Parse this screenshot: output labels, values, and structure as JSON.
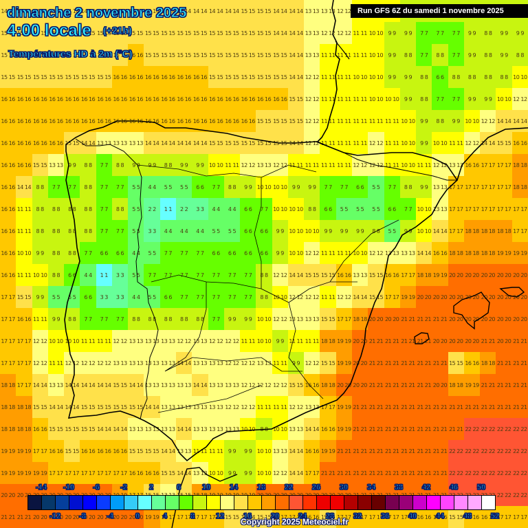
{
  "header": {
    "date": "dimanche 2 novembre 2025",
    "time": "4:00 locale",
    "offset": "(+21h)",
    "variable": "Températures HD à 2m (°C)",
    "run": "Run GFS 6Z du samedi 1 novembre 2025"
  },
  "copyright": "Copyright 2025 Meteociel.fr",
  "legend": {
    "unit": "°C",
    "boxes": [
      {
        "from": -16,
        "color": "#0a1440"
      },
      {
        "from": -14,
        "color": "#06386a"
      },
      {
        "from": -12,
        "color": "#053f9c"
      },
      {
        "from": -10,
        "color": "#0010d0"
      },
      {
        "from": -8,
        "color": "#0000ff"
      },
      {
        "from": -6,
        "color": "#0a3cff"
      },
      {
        "from": -4,
        "color": "#009cf8"
      },
      {
        "from": -2,
        "color": "#34ccf8"
      },
      {
        "from": 0,
        "color": "#66ffff"
      },
      {
        "from": 2,
        "color": "#66ff99"
      },
      {
        "from": 4,
        "color": "#66ff66"
      },
      {
        "from": 6,
        "color": "#66ff00"
      },
      {
        "from": 8,
        "color": "#c8f510"
      },
      {
        "from": 10,
        "color": "#ffff00"
      },
      {
        "from": 12,
        "color": "#ffff80"
      },
      {
        "from": 14,
        "color": "#ffe14a"
      },
      {
        "from": 16,
        "color": "#ffc800"
      },
      {
        "from": 18,
        "color": "#ff9d00"
      },
      {
        "from": 20,
        "color": "#ff6e00"
      },
      {
        "from": 22,
        "color": "#ff5533"
      },
      {
        "from": 24,
        "color": "#ff3300"
      },
      {
        "from": 26,
        "color": "#ee0000"
      },
      {
        "from": 28,
        "color": "#f00000"
      },
      {
        "from": 30,
        "color": "#b40000"
      },
      {
        "from": 32,
        "color": "#8a0000"
      },
      {
        "from": 34,
        "color": "#680000"
      },
      {
        "from": 36,
        "color": "#780050"
      },
      {
        "from": 38,
        "color": "#9a0078"
      },
      {
        "from": 40,
        "color": "#cc00cc"
      },
      {
        "from": 42,
        "color": "#ff00ff"
      },
      {
        "from": 44,
        "color": "#ff44ff"
      },
      {
        "from": 46,
        "color": "#ff88ff"
      },
      {
        "from": 48,
        "color": "#ffaaff"
      },
      {
        "from": 50,
        "color": "#ffffff"
      }
    ],
    "top_labels": [
      "-14",
      "-10",
      "-6",
      "-2",
      "2",
      "6",
      "10",
      "14",
      "18",
      "22",
      "26",
      "30",
      "34",
      "38",
      "42",
      "46",
      "50"
    ],
    "bottom_labels": [
      "-12",
      "-8",
      "-4",
      "0",
      "4",
      "8",
      "12",
      "16",
      "20",
      "24",
      "28",
      "32",
      "36",
      "40",
      "44",
      "48",
      "52"
    ]
  },
  "map": {
    "region": "Péninsule Ibérique",
    "cols": 33,
    "rows": 24,
    "temperatures": [
      [
        14,
        14,
        14,
        14,
        14,
        14,
        14,
        14,
        14,
        14,
        14,
        14,
        14,
        14,
        14,
        15,
        15,
        14,
        14,
        13,
        13,
        12,
        11,
        10,
        10,
        9,
        9,
        8,
        8,
        8,
        9,
        9,
        9
      ],
      [
        15,
        15,
        15,
        15,
        15,
        15,
        15,
        15,
        15,
        15,
        15,
        15,
        15,
        15,
        15,
        15,
        15,
        14,
        14,
        13,
        12,
        12,
        11,
        10,
        9,
        9,
        7,
        7,
        7,
        9,
        8,
        9,
        9
      ],
      [
        15,
        15,
        15,
        15,
        15,
        15,
        15,
        15,
        16,
        15,
        15,
        15,
        15,
        15,
        15,
        15,
        15,
        15,
        14,
        13,
        11,
        11,
        11,
        10,
        9,
        8,
        7,
        8,
        7,
        9,
        8,
        9,
        8
      ],
      [
        15,
        15,
        15,
        15,
        15,
        15,
        15,
        16,
        16,
        16,
        16,
        16,
        16,
        15,
        15,
        15,
        15,
        15,
        14,
        12,
        11,
        11,
        10,
        10,
        9,
        9,
        8,
        6,
        8,
        8,
        8,
        8,
        10
      ],
      [
        16,
        16,
        16,
        16,
        16,
        16,
        16,
        16,
        16,
        16,
        16,
        16,
        16,
        16,
        16,
        16,
        16,
        16,
        15,
        12,
        11,
        11,
        11,
        10,
        10,
        9,
        8,
        7,
        7,
        9,
        9,
        10,
        12
      ],
      [
        16,
        16,
        16,
        16,
        16,
        16,
        16,
        16,
        16,
        16,
        16,
        16,
        16,
        16,
        16,
        16,
        15,
        15,
        15,
        12,
        11,
        11,
        11,
        11,
        11,
        10,
        9,
        8,
        9,
        10,
        12,
        14,
        14
      ],
      [
        16,
        16,
        16,
        16,
        15,
        14,
        13,
        13,
        13,
        14,
        14,
        14,
        14,
        15,
        15,
        15,
        15,
        15,
        14,
        12,
        11,
        11,
        11,
        12,
        11,
        10,
        9,
        10,
        11,
        12,
        14,
        15,
        16
      ],
      [
        16,
        16,
        15,
        13,
        9,
        8,
        7,
        8,
        9,
        9,
        8,
        9,
        9,
        10,
        11,
        12,
        13,
        12,
        11,
        11,
        11,
        11,
        12,
        12,
        11,
        10,
        11,
        12,
        13,
        16,
        17,
        17,
        18
      ],
      [
        16,
        14,
        8,
        7,
        7,
        8,
        7,
        7,
        5,
        4,
        5,
        5,
        6,
        7,
        8,
        9,
        10,
        10,
        9,
        9,
        7,
        7,
        6,
        5,
        7,
        8,
        9,
        13,
        17,
        17,
        17,
        17,
        18
      ],
      [
        16,
        11,
        8,
        8,
        8,
        8,
        7,
        8,
        5,
        2,
        1,
        2,
        3,
        4,
        4,
        6,
        7,
        10,
        10,
        8,
        6,
        5,
        5,
        5,
        6,
        7,
        10,
        13,
        17,
        17,
        17,
        17,
        17
      ],
      [
        16,
        11,
        8,
        8,
        8,
        8,
        7,
        7,
        5,
        3,
        4,
        4,
        4,
        5,
        5,
        6,
        6,
        9,
        10,
        10,
        9,
        9,
        9,
        8,
        5,
        9,
        10,
        14,
        17,
        18,
        18,
        18,
        17
      ],
      [
        16,
        10,
        9,
        8,
        8,
        7,
        6,
        6,
        4,
        5,
        7,
        7,
        7,
        6,
        6,
        6,
        6,
        9,
        10,
        12,
        11,
        11,
        10,
        12,
        13,
        13,
        14,
        16,
        18,
        18,
        18,
        19,
        19
      ],
      [
        16,
        11,
        10,
        8,
        6,
        4,
        1,
        3,
        5,
        7,
        7,
        7,
        7,
        7,
        7,
        7,
        8,
        12,
        14,
        15,
        15,
        16,
        13,
        15,
        16,
        17,
        18,
        19,
        20,
        20,
        20,
        20,
        20
      ],
      [
        17,
        15,
        9,
        5,
        5,
        6,
        3,
        3,
        4,
        5,
        6,
        7,
        7,
        7,
        7,
        7,
        8,
        10,
        12,
        12,
        11,
        12,
        14,
        15,
        17,
        19,
        20,
        20,
        20,
        20,
        20,
        20,
        20
      ],
      [
        17,
        16,
        11,
        9,
        8,
        7,
        7,
        7,
        8,
        8,
        8,
        8,
        8,
        7,
        9,
        9,
        10,
        12,
        13,
        13,
        15,
        17,
        18,
        20,
        20,
        21,
        21,
        21,
        20,
        20,
        20,
        20,
        20
      ],
      [
        17,
        17,
        12,
        10,
        10,
        11,
        11,
        12,
        13,
        13,
        13,
        12,
        13,
        12,
        12,
        11,
        10,
        9,
        11,
        11,
        18,
        19,
        20,
        21,
        21,
        21,
        21,
        20,
        20,
        20,
        21,
        20,
        21
      ],
      [
        17,
        17,
        12,
        11,
        12,
        12,
        12,
        13,
        13,
        13,
        13,
        14,
        13,
        13,
        12,
        12,
        13,
        11,
        9,
        12,
        15,
        19,
        20,
        21,
        21,
        21,
        21,
        21,
        15,
        16,
        18,
        21,
        21
      ],
      [
        18,
        17,
        14,
        13,
        14,
        14,
        14,
        15,
        14,
        13,
        13,
        13,
        14,
        13,
        13,
        12,
        12,
        12,
        15,
        16,
        18,
        20,
        20,
        21,
        21,
        21,
        21,
        20,
        18,
        19,
        21,
        21,
        21
      ],
      [
        18,
        18,
        15,
        14,
        14,
        15,
        15,
        15,
        15,
        14,
        13,
        13,
        13,
        13,
        12,
        12,
        11,
        11,
        12,
        13,
        17,
        19,
        21,
        21,
        21,
        21,
        21,
        21,
        21,
        21,
        21,
        21,
        21
      ],
      [
        18,
        18,
        16,
        15,
        15,
        15,
        14,
        14,
        13,
        13,
        13,
        14,
        13,
        13,
        13,
        10,
        8,
        10,
        13,
        14,
        16,
        19,
        21,
        21,
        21,
        21,
        21,
        21,
        21,
        22,
        22,
        22,
        22
      ],
      [
        19,
        19,
        17,
        16,
        15,
        16,
        16,
        16,
        15,
        15,
        14,
        13,
        11,
        11,
        9,
        9,
        10,
        13,
        14,
        16,
        19,
        21,
        21,
        21,
        21,
        21,
        21,
        21,
        22,
        22,
        22,
        22,
        22
      ],
      [
        19,
        19,
        19,
        17,
        17,
        17,
        17,
        17,
        16,
        16,
        15,
        14,
        13,
        10,
        9,
        9,
        10,
        12,
        14,
        17,
        21,
        21,
        21,
        21,
        21,
        21,
        21,
        21,
        22,
        22,
        22,
        22,
        22
      ],
      [
        20,
        20,
        20,
        20,
        20,
        20,
        20,
        19,
        17,
        15,
        13,
        15,
        18,
        19,
        19,
        19,
        20,
        20,
        20,
        20,
        20,
        20,
        21,
        21,
        21,
        21,
        21,
        21,
        22,
        22,
        22,
        22,
        22
      ],
      [
        21,
        21,
        20,
        20,
        20,
        20,
        20,
        20,
        20,
        19,
        17,
        17,
        17,
        17,
        15,
        14,
        15,
        17,
        17,
        16,
        15,
        17,
        17,
        17,
        17,
        17,
        16,
        16,
        15,
        16,
        16,
        17,
        17
      ]
    ]
  }
}
